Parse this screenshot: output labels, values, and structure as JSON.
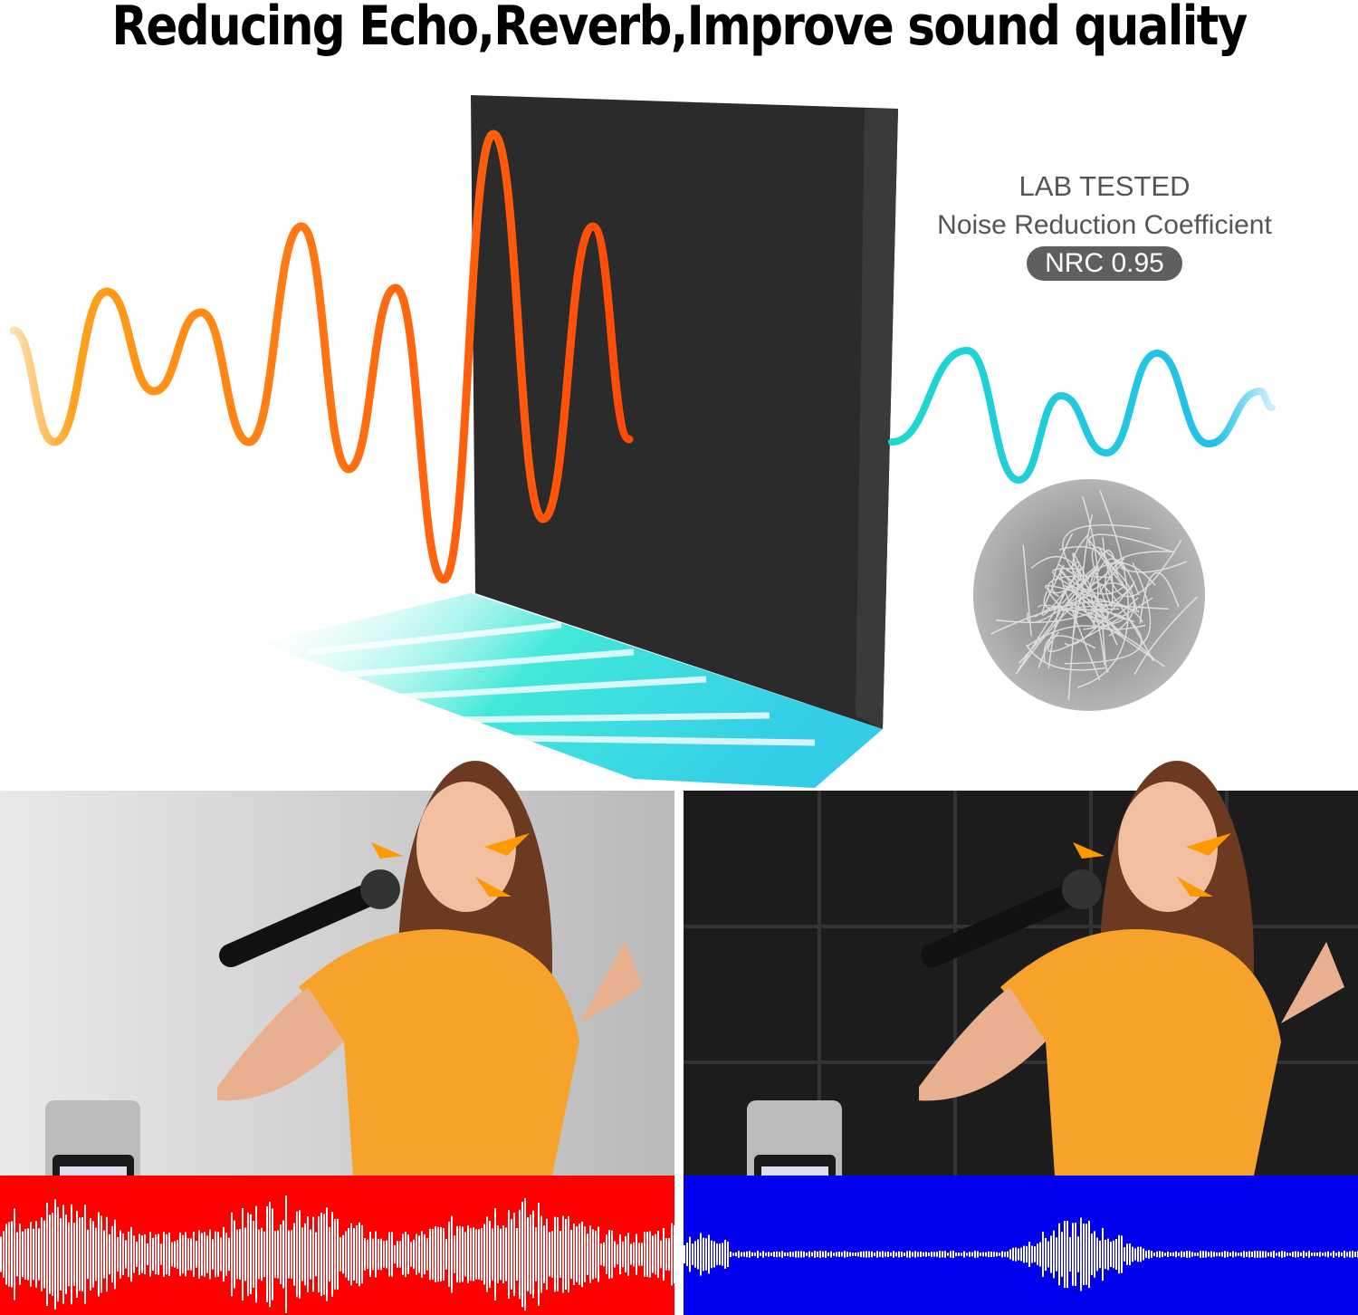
{
  "headline": "Reducing Echo,Reverb,Improve sound quality",
  "lab_callout": {
    "line1": "LAB TESTED",
    "line2": "Noise Reduction Coefficient",
    "badge": "NRC 0.95"
  },
  "colors": {
    "incoming_wave": "#ff7a1a",
    "outgoing_wave": "#22ccdd",
    "panel": "#2a2a2a",
    "before_band": "#ff0000",
    "after_band": "#0000ee",
    "shirt": "#f7a22a"
  },
  "comparison": {
    "left": "untreated room - loud waveform",
    "right": "acoustic panel room - quiet waveform"
  }
}
